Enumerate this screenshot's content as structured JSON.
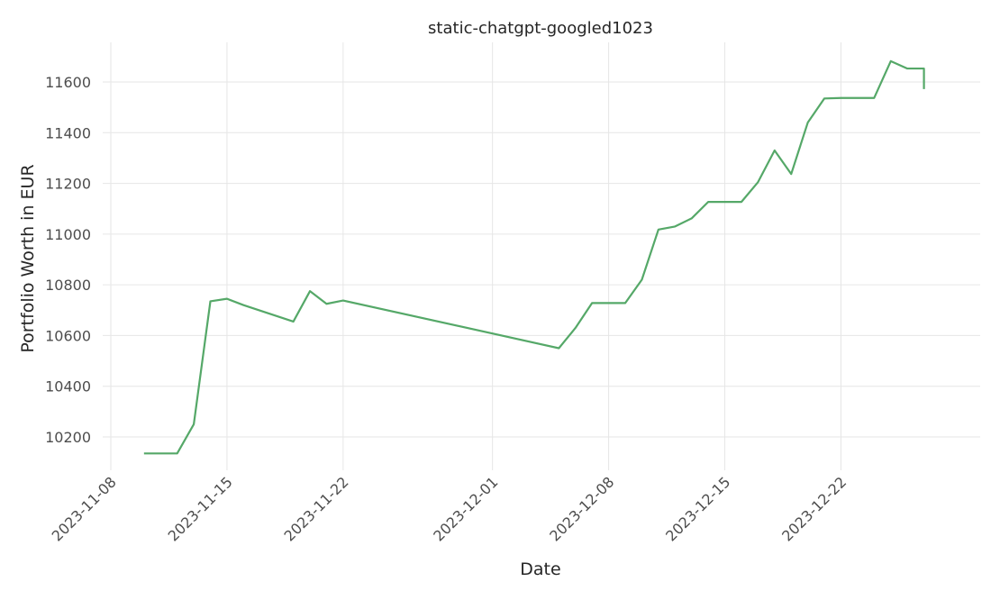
{
  "chart_data": {
    "type": "line",
    "title": "static-chatgpt-googled1023",
    "xlabel": "Date",
    "ylabel": "Portfolio Worth in EUR",
    "x_tick_labels": [
      "2023-11-08",
      "2023-11-15",
      "2023-11-22",
      "2023-12-01",
      "2023-12-08",
      "2023-12-15",
      "2023-12-22"
    ],
    "y_tick_labels": [
      "10200",
      "10400",
      "10600",
      "10800",
      "11000",
      "11200",
      "11400",
      "11600"
    ],
    "xlim": [
      "2023-11-08",
      "2023-12-30"
    ],
    "ylim": [
      10050,
      11760
    ],
    "grid": true,
    "legend": "none",
    "line_color": "#55a868",
    "series": [
      {
        "points": [
          {
            "x": "2023-11-10",
            "y": 10135
          },
          {
            "x": "2023-11-11",
            "y": 10135
          },
          {
            "x": "2023-11-12",
            "y": 10135
          },
          {
            "x": "2023-11-13",
            "y": 10250
          },
          {
            "x": "2023-11-14",
            "y": 10735
          },
          {
            "x": "2023-11-15",
            "y": 10745
          },
          {
            "x": "2023-11-16",
            "y": 10720
          },
          {
            "x": "2023-11-19",
            "y": 10655
          },
          {
            "x": "2023-11-20",
            "y": 10775
          },
          {
            "x": "2023-11-21",
            "y": 10725
          },
          {
            "x": "2023-11-22",
            "y": 10738
          },
          {
            "x": "2023-12-05",
            "y": 10550
          },
          {
            "x": "2023-12-06",
            "y": 10630
          },
          {
            "x": "2023-12-07",
            "y": 10728
          },
          {
            "x": "2023-12-08",
            "y": 10728
          },
          {
            "x": "2023-12-09",
            "y": 10728
          },
          {
            "x": "2023-12-10",
            "y": 10820
          },
          {
            "x": "2023-12-11",
            "y": 11018
          },
          {
            "x": "2023-12-12",
            "y": 11030
          },
          {
            "x": "2023-12-13",
            "y": 11062
          },
          {
            "x": "2023-12-14",
            "y": 11127
          },
          {
            "x": "2023-12-15",
            "y": 11127
          },
          {
            "x": "2023-12-16",
            "y": 11127
          },
          {
            "x": "2023-12-17",
            "y": 11205
          },
          {
            "x": "2023-12-18",
            "y": 11330
          },
          {
            "x": "2023-12-19",
            "y": 11237
          },
          {
            "x": "2023-12-20",
            "y": 11440
          },
          {
            "x": "2023-12-21",
            "y": 11535
          },
          {
            "x": "2023-12-22",
            "y": 11537
          },
          {
            "x": "2023-12-23",
            "y": 11537
          },
          {
            "x": "2023-12-24",
            "y": 11537
          },
          {
            "x": "2023-12-25",
            "y": 11682
          },
          {
            "x": "2023-12-26",
            "y": 11653
          },
          {
            "x": "2023-12-27",
            "y": 11653
          },
          {
            "x": "2023-12-27",
            "y": 11572
          }
        ]
      }
    ]
  }
}
